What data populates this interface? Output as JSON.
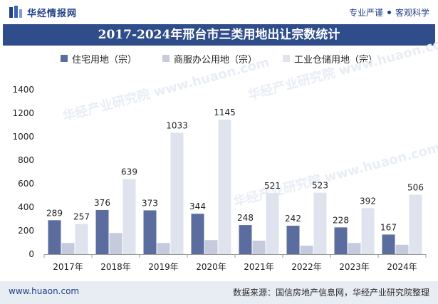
{
  "header": {
    "brand": "华经情报网",
    "slogan_left": "专业严谨",
    "slogan_right": "客观科学"
  },
  "colors": {
    "brand": "#1f3f86",
    "title_bg": "#2f4d8a",
    "series": [
      "#5b6c9e",
      "#c5cbdc",
      "#dfe3ee"
    ]
  },
  "chart_data": {
    "type": "bar",
    "title": "2017-2024年邢台市三类用地出让宗数统计",
    "categories": [
      "2017年",
      "2018年",
      "2019年",
      "2020年",
      "2021年",
      "2022年",
      "2023年",
      "2024年"
    ],
    "series": [
      {
        "name": "住宅用地（宗）",
        "values": [
          289,
          376,
          373,
          344,
          248,
          242,
          228,
          167
        ],
        "labeled": true
      },
      {
        "name": "商服办公用地（宗）",
        "values": [
          95,
          180,
          95,
          120,
          115,
          72,
          95,
          80
        ],
        "labeled": false
      },
      {
        "name": "工业仓储用地（宗）",
        "values": [
          257,
          639,
          1033,
          1145,
          521,
          523,
          392,
          506
        ],
        "labeled": true
      }
    ],
    "y_ticks": [
      0,
      200,
      400,
      600,
      800,
      1000,
      1200,
      1400
    ],
    "ylim": [
      0,
      1400
    ],
    "legend_position": "top-center",
    "watermark": "华经产业研究院 www.huaon.com"
  },
  "footer": {
    "site": "www.huaon.com",
    "source": "数据来源：国信房地产信息网，华经产业研究院整理"
  }
}
